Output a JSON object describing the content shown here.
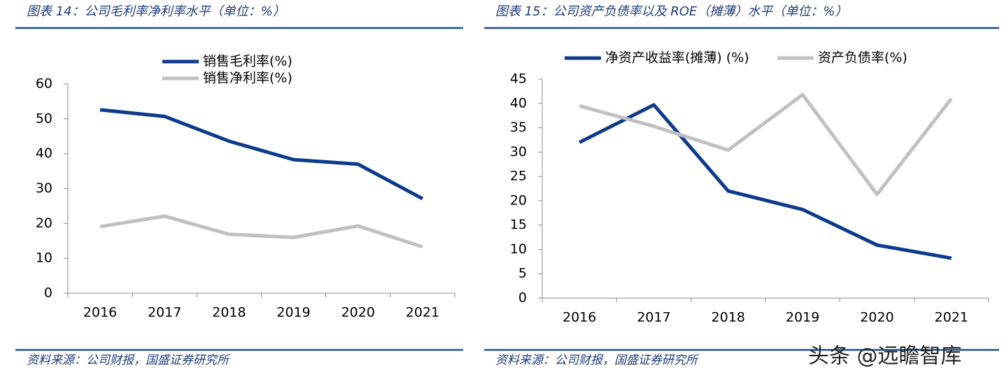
{
  "chart_data": [
    {
      "type": "line",
      "title": "图表 14：公司毛利率净利率水平（单位：%）",
      "source": "资料来源：公司财报，国盛证券研究所",
      "categories": [
        "2016",
        "2017",
        "2018",
        "2019",
        "2020",
        "2021"
      ],
      "series": [
        {
          "name": "销售毛利率(%)",
          "color": "#0d3a8c",
          "values": [
            52.6,
            50.7,
            43.6,
            38.3,
            37.0,
            27.1
          ]
        },
        {
          "name": "销售净利率(%)",
          "color": "#c0c0c0",
          "values": [
            19.1,
            22.1,
            16.9,
            16.0,
            19.3,
            13.3
          ]
        }
      ],
      "ylim": [
        0,
        60
      ],
      "yticks": [
        0,
        10,
        20,
        30,
        40,
        50,
        60
      ],
      "legend": "top-stacked"
    },
    {
      "type": "line",
      "title": "图表 15：公司资产负债率以及 ROE（摊薄）水平（单位：%）",
      "source": "资料来源：公司财报，国盛证券研究所",
      "categories": [
        "2016",
        "2017",
        "2018",
        "2019",
        "2020",
        "2021"
      ],
      "series": [
        {
          "name": "净资产收益率(摊薄) (%)",
          "color": "#0d3a8c",
          "values": [
            32.0,
            39.7,
            22.0,
            18.2,
            10.9,
            8.2
          ]
        },
        {
          "name": "资产负债率(%)",
          "color": "#c0c0c0",
          "values": [
            39.5,
            35.3,
            30.4,
            41.8,
            21.3,
            41.0
          ]
        }
      ],
      "ylim": [
        0,
        45
      ],
      "yticks": [
        0,
        5,
        10,
        15,
        20,
        25,
        30,
        35,
        40,
        45
      ],
      "legend": "top-row"
    }
  ],
  "watermark": "头条 @远瞻智库"
}
